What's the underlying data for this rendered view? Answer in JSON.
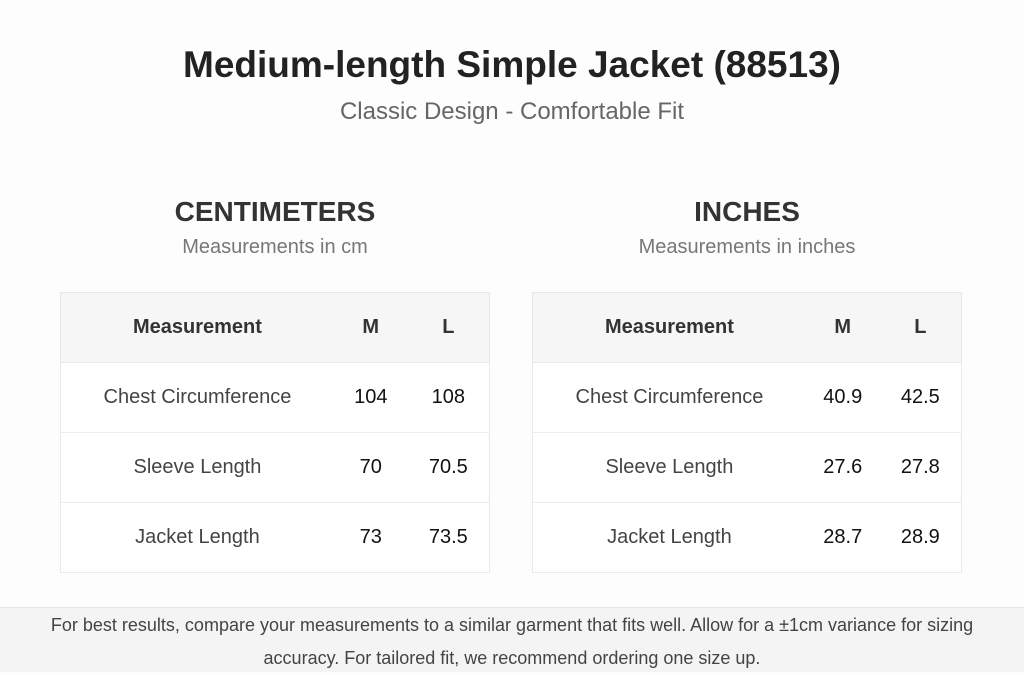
{
  "header": {
    "title": "Medium-length Simple Jacket (88513)",
    "subtitle": "Classic Design - Comfortable Fit"
  },
  "tables": [
    {
      "heading": "CENTIMETERS",
      "subheading": "Measurements in cm",
      "columns": [
        "Measurement",
        "M",
        "L"
      ],
      "rows": [
        [
          "Chest Circumference",
          "104",
          "108"
        ],
        [
          "Sleeve Length",
          "70",
          "70.5"
        ],
        [
          "Jacket Length",
          "73",
          "73.5"
        ]
      ]
    },
    {
      "heading": "INCHES",
      "subheading": "Measurements in inches",
      "columns": [
        "Measurement",
        "M",
        "L"
      ],
      "rows": [
        [
          "Chest Circumference",
          "40.9",
          "42.5"
        ],
        [
          "Sleeve Length",
          "27.6",
          "27.8"
        ],
        [
          "Jacket Length",
          "28.7",
          "28.9"
        ]
      ]
    }
  ],
  "footer": {
    "note": "For best results, compare your measurements to a similar garment that fits well. Allow for a ±1cm variance for sizing accuracy. For tailored fit, we recommend ordering one size up."
  }
}
